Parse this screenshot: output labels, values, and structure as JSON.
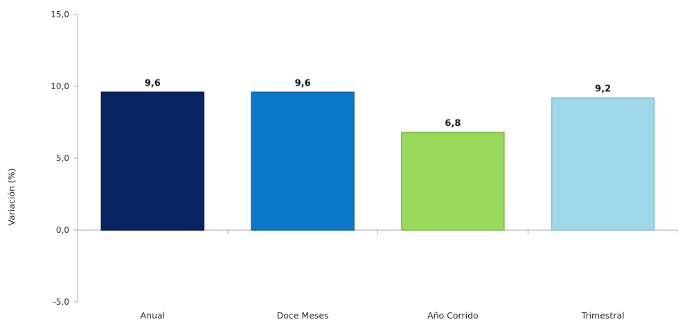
{
  "chart_data": {
    "type": "bar",
    "title": "",
    "xlabel": "",
    "ylabel": "Variación (%)",
    "categories": [
      "Anual",
      "Doce Meses",
      "Año Corrido",
      "Trimestral"
    ],
    "values": [
      9.6,
      9.6,
      6.8,
      9.2
    ],
    "data_labels": [
      "9,6",
      "9,6",
      "6,8",
      "9,2"
    ],
    "colors": [
      "#0a2463",
      "#0b78c9",
      "#9ada5a",
      "#9fd8e9"
    ],
    "border_colors": [
      "#06184a",
      "#09609f",
      "#7ab843",
      "#7fbcd1"
    ],
    "ylim": [
      -5,
      15
    ],
    "yticks": [
      15,
      10,
      5,
      0,
      -5
    ],
    "ytick_labels": [
      "15,0",
      "10,0",
      "5,0",
      "0,0",
      "-5,0"
    ],
    "grid": false,
    "legend": "none"
  }
}
